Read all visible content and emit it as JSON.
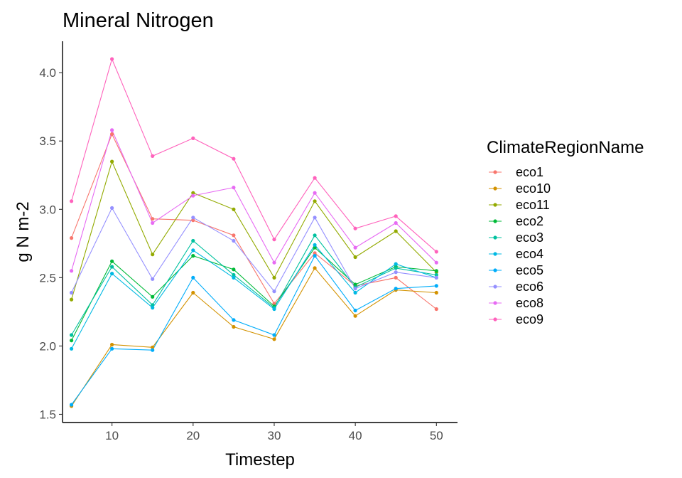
{
  "chart_data": {
    "type": "line",
    "title": "Mineral Nitrogen",
    "xlabel": "Timestep",
    "ylabel": "g N m-2",
    "xlim": [
      3.9,
      52.6
    ],
    "ylim": [
      1.44,
      4.23
    ],
    "x_ticks": [
      10,
      20,
      30,
      40,
      50
    ],
    "y_ticks": [
      1.5,
      2.0,
      2.5,
      3.0,
      3.5,
      4.0
    ],
    "y_tick_labels": [
      "1.5",
      "2.0",
      "2.5",
      "3.0",
      "3.5",
      "4.0"
    ],
    "grid": false,
    "legend": {
      "title": "ClimateRegionName",
      "position": "right"
    },
    "x": [
      5,
      10,
      15,
      20,
      25,
      30,
      35,
      40,
      45,
      50
    ],
    "series": [
      {
        "name": "eco1",
        "color": "#F8766D",
        "values": [
          2.79,
          3.55,
          2.93,
          2.92,
          2.81,
          2.31,
          2.68,
          2.44,
          2.5,
          2.27
        ]
      },
      {
        "name": "eco10",
        "color": "#D39200",
        "values": [
          1.56,
          2.01,
          1.99,
          2.39,
          2.14,
          2.05,
          2.57,
          2.22,
          2.41,
          2.39
        ]
      },
      {
        "name": "eco11",
        "color": "#93AA00",
        "values": [
          2.34,
          3.35,
          2.67,
          3.12,
          3.0,
          2.5,
          3.06,
          2.65,
          2.84,
          2.54
        ]
      },
      {
        "name": "eco2",
        "color": "#00BA38",
        "values": [
          2.04,
          2.62,
          2.36,
          2.66,
          2.56,
          2.29,
          2.72,
          2.45,
          2.58,
          2.55
        ]
      },
      {
        "name": "eco3",
        "color": "#00C19F",
        "values": [
          2.08,
          2.58,
          2.3,
          2.77,
          2.52,
          2.28,
          2.81,
          2.43,
          2.57,
          2.52
        ]
      },
      {
        "name": "eco4",
        "color": "#00B9E3",
        "values": [
          1.98,
          2.53,
          2.28,
          2.7,
          2.5,
          2.27,
          2.74,
          2.39,
          2.6,
          2.5
        ]
      },
      {
        "name": "eco5",
        "color": "#00ADFA",
        "values": [
          1.57,
          1.98,
          1.97,
          2.5,
          2.19,
          2.08,
          2.66,
          2.26,
          2.42,
          2.44
        ]
      },
      {
        "name": "eco6",
        "color": "#9590FF",
        "values": [
          2.39,
          3.01,
          2.49,
          2.94,
          2.77,
          2.4,
          2.94,
          2.42,
          2.54,
          2.5
        ]
      },
      {
        "name": "eco8",
        "color": "#E76BF3",
        "values": [
          2.55,
          3.58,
          2.9,
          3.1,
          3.16,
          2.61,
          3.12,
          2.72,
          2.9,
          2.61
        ]
      },
      {
        "name": "eco9",
        "color": "#FF62BC",
        "values": [
          3.06,
          4.1,
          3.39,
          3.52,
          3.37,
          2.78,
          3.23,
          2.86,
          2.95,
          2.69
        ]
      }
    ]
  }
}
